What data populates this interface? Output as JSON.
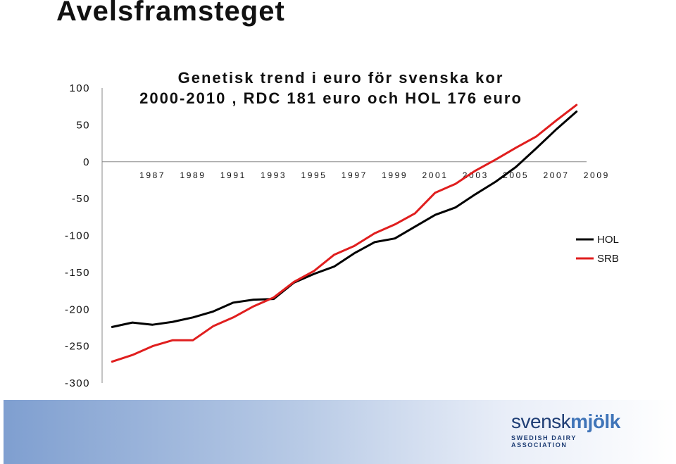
{
  "slide": {
    "title": "Avelsframsteget"
  },
  "colors": {
    "hol": "#000000",
    "srb": "#e01e1e",
    "axis": "#888888"
  },
  "chart_data": {
    "type": "line",
    "title_lines": [
      "Genetisk trend i euro för svenska kor",
      "2000-2010 , RDC 181 euro  och HOL 176 euro"
    ],
    "xlabel": "",
    "ylabel": "",
    "ylim": [
      -300,
      100
    ],
    "yticks": [
      100,
      50,
      0,
      -50,
      -100,
      -150,
      -200,
      -250,
      -300
    ],
    "ytick_labels": [
      "100",
      "50",
      "0",
      "-50",
      "-100",
      "-150",
      "-200",
      "-250",
      "-300"
    ],
    "x_tick_labels": [
      "1987",
      "1989",
      "1991",
      "1993",
      "1995",
      "1997",
      "1999",
      "2001",
      "2003",
      "2005",
      "2007",
      "2009"
    ],
    "x": [
      1985,
      1986,
      1987,
      1988,
      1989,
      1990,
      1991,
      1992,
      1993,
      1994,
      1995,
      1996,
      1997,
      1998,
      1999,
      2000,
      2001,
      2002,
      2003,
      2004,
      2005,
      2006,
      2007,
      2008
    ],
    "xlim": [
      1984.5,
      2008.5
    ],
    "grid": false,
    "legend_position": "right",
    "series": [
      {
        "name": "HOL",
        "color_key": "hol",
        "values": [
          -224,
          -218,
          -221,
          -217,
          -211,
          -203,
          -191,
          -187,
          -186,
          -164,
          -152,
          -142,
          -124,
          -109,
          -104,
          -88,
          -72,
          -62,
          -44,
          -27,
          -7,
          18,
          44,
          68
        ]
      },
      {
        "name": "SRB",
        "color_key": "srb",
        "values": [
          -271,
          -262,
          -250,
          -242,
          -242,
          -223,
          -211,
          -196,
          -184,
          -163,
          -148,
          -126,
          -114,
          -97,
          -85,
          -70,
          -42,
          -30,
          -12,
          3,
          19,
          34,
          56,
          77
        ]
      }
    ]
  },
  "logo": {
    "word_part1": "svensk",
    "word_part2": "mjölk",
    "tagline": "SWEDISH DAIRY ASSOCIATION"
  }
}
